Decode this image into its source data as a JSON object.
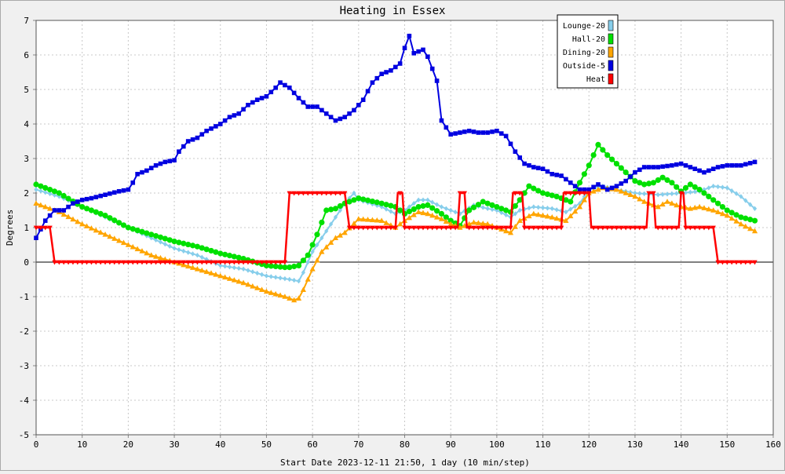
{
  "chart_data": {
    "type": "line",
    "title": "Heating in Essex",
    "xlabel": "Start Date 2023-12-11 21:50, 1 day (10 min/step)",
    "ylabel": "Degrees",
    "xlim": [
      0,
      160
    ],
    "ylim": [
      -5,
      7
    ],
    "x_ticks": [
      0,
      10,
      20,
      30,
      40,
      50,
      60,
      70,
      80,
      90,
      100,
      110,
      120,
      130,
      140,
      150,
      160
    ],
    "y_ticks": [
      -5,
      -4,
      -3,
      -2,
      -1,
      0,
      1,
      2,
      3,
      4,
      5,
      6,
      7
    ],
    "grid": true,
    "legend": "top-right",
    "series": [
      {
        "name": "Lounge-20",
        "color": "#87ceeb",
        "marker": "diamond",
        "points": [
          [
            0,
            2.1
          ],
          [
            5,
            1.9
          ],
          [
            10,
            1.6
          ],
          [
            15,
            1.3
          ],
          [
            20,
            1.0
          ],
          [
            25,
            0.7
          ],
          [
            30,
            0.4
          ],
          [
            35,
            0.2
          ],
          [
            40,
            -0.1
          ],
          [
            45,
            -0.2
          ],
          [
            50,
            -0.4
          ],
          [
            55,
            -0.5
          ],
          [
            57,
            -0.55
          ],
          [
            58,
            -0.3
          ],
          [
            60,
            0.3
          ],
          [
            63,
            0.9
          ],
          [
            65,
            1.3
          ],
          [
            67,
            1.7
          ],
          [
            69,
            2.0
          ],
          [
            70,
            1.8
          ],
          [
            75,
            1.6
          ],
          [
            78,
            1.4
          ],
          [
            80,
            1.5
          ],
          [
            83,
            1.8
          ],
          [
            85,
            1.8
          ],
          [
            88,
            1.6
          ],
          [
            90,
            1.5
          ],
          [
            92,
            1.4
          ],
          [
            95,
            1.65
          ],
          [
            98,
            1.55
          ],
          [
            100,
            1.5
          ],
          [
            103,
            1.3
          ],
          [
            105,
            1.5
          ],
          [
            108,
            1.6
          ],
          [
            112,
            1.55
          ],
          [
            115,
            1.45
          ],
          [
            118,
            1.7
          ],
          [
            120,
            2.1
          ],
          [
            123,
            2.2
          ],
          [
            126,
            2.1
          ],
          [
            130,
            2.0
          ],
          [
            135,
            1.95
          ],
          [
            140,
            2.0
          ],
          [
            144,
            2.05
          ],
          [
            147,
            2.2
          ],
          [
            150,
            2.15
          ],
          [
            153,
            1.9
          ],
          [
            156,
            1.55
          ]
        ]
      },
      {
        "name": "Hall-20",
        "color": "#00e000",
        "marker": "circle",
        "points": [
          [
            0,
            2.25
          ],
          [
            5,
            2.0
          ],
          [
            10,
            1.6
          ],
          [
            15,
            1.35
          ],
          [
            20,
            1.0
          ],
          [
            25,
            0.8
          ],
          [
            30,
            0.6
          ],
          [
            35,
            0.45
          ],
          [
            40,
            0.25
          ],
          [
            45,
            0.1
          ],
          [
            50,
            -0.1
          ],
          [
            54,
            -0.15
          ],
          [
            55,
            -0.15
          ],
          [
            57,
            -0.1
          ],
          [
            59,
            0.2
          ],
          [
            61,
            0.8
          ],
          [
            63,
            1.5
          ],
          [
            65,
            1.55
          ],
          [
            67,
            1.7
          ],
          [
            70,
            1.85
          ],
          [
            75,
            1.7
          ],
          [
            78,
            1.6
          ],
          [
            80,
            1.4
          ],
          [
            83,
            1.6
          ],
          [
            85,
            1.65
          ],
          [
            88,
            1.4
          ],
          [
            90,
            1.2
          ],
          [
            92,
            1.05
          ],
          [
            94,
            1.5
          ],
          [
            97,
            1.75
          ],
          [
            100,
            1.6
          ],
          [
            103,
            1.45
          ],
          [
            105,
            1.8
          ],
          [
            107,
            2.2
          ],
          [
            110,
            2.0
          ],
          [
            113,
            1.9
          ],
          [
            116,
            1.75
          ],
          [
            118,
            2.3
          ],
          [
            120,
            2.8
          ],
          [
            122,
            3.4
          ],
          [
            124,
            3.1
          ],
          [
            126,
            2.85
          ],
          [
            128,
            2.6
          ],
          [
            130,
            2.35
          ],
          [
            132,
            2.25
          ],
          [
            134,
            2.3
          ],
          [
            136,
            2.45
          ],
          [
            138,
            2.3
          ],
          [
            140,
            2.05
          ],
          [
            142,
            2.25
          ],
          [
            144,
            2.1
          ],
          [
            147,
            1.8
          ],
          [
            150,
            1.5
          ],
          [
            153,
            1.3
          ],
          [
            156,
            1.2
          ]
        ]
      },
      {
        "name": "Dining-20",
        "color": "#ffa500",
        "marker": "triangle",
        "points": [
          [
            0,
            1.7
          ],
          [
            5,
            1.45
          ],
          [
            10,
            1.1
          ],
          [
            15,
            0.8
          ],
          [
            20,
            0.5
          ],
          [
            25,
            0.2
          ],
          [
            30,
            0.0
          ],
          [
            35,
            -0.2
          ],
          [
            40,
            -0.4
          ],
          [
            45,
            -0.6
          ],
          [
            50,
            -0.85
          ],
          [
            54,
            -1.0
          ],
          [
            56,
            -1.1
          ],
          [
            57,
            -1.05
          ],
          [
            58,
            -0.8
          ],
          [
            60,
            -0.2
          ],
          [
            62,
            0.3
          ],
          [
            65,
            0.7
          ],
          [
            67,
            0.85
          ],
          [
            70,
            1.25
          ],
          [
            75,
            1.2
          ],
          [
            78,
            1.0
          ],
          [
            80,
            1.2
          ],
          [
            83,
            1.45
          ],
          [
            85,
            1.4
          ],
          [
            88,
            1.25
          ],
          [
            90,
            1.1
          ],
          [
            92,
            1.0
          ],
          [
            95,
            1.15
          ],
          [
            98,
            1.1
          ],
          [
            100,
            1.0
          ],
          [
            103,
            0.85
          ],
          [
            105,
            1.2
          ],
          [
            108,
            1.4
          ],
          [
            112,
            1.3
          ],
          [
            115,
            1.2
          ],
          [
            118,
            1.6
          ],
          [
            120,
            2.0
          ],
          [
            123,
            2.15
          ],
          [
            126,
            2.1
          ],
          [
            128,
            2.0
          ],
          [
            130,
            1.9
          ],
          [
            132,
            1.75
          ],
          [
            135,
            1.6
          ],
          [
            137,
            1.75
          ],
          [
            140,
            1.6
          ],
          [
            142,
            1.55
          ],
          [
            144,
            1.6
          ],
          [
            147,
            1.5
          ],
          [
            150,
            1.35
          ],
          [
            153,
            1.1
          ],
          [
            156,
            0.9
          ]
        ]
      },
      {
        "name": "Outside-5",
        "color": "#0000e0",
        "marker": "square",
        "points": [
          [
            0,
            0.7
          ],
          [
            2,
            1.2
          ],
          [
            4,
            1.5
          ],
          [
            6,
            1.5
          ],
          [
            8,
            1.7
          ],
          [
            10,
            1.8
          ],
          [
            12,
            1.85
          ],
          [
            15,
            1.95
          ],
          [
            18,
            2.05
          ],
          [
            20,
            2.1
          ],
          [
            21,
            2.3
          ],
          [
            22,
            2.55
          ],
          [
            24,
            2.65
          ],
          [
            26,
            2.8
          ],
          [
            28,
            2.9
          ],
          [
            30,
            2.95
          ],
          [
            31,
            3.2
          ],
          [
            33,
            3.5
          ],
          [
            35,
            3.6
          ],
          [
            37,
            3.8
          ],
          [
            40,
            4.0
          ],
          [
            42,
            4.2
          ],
          [
            44,
            4.3
          ],
          [
            46,
            4.55
          ],
          [
            48,
            4.7
          ],
          [
            50,
            4.8
          ],
          [
            52,
            5.05
          ],
          [
            53,
            5.2
          ],
          [
            55,
            5.05
          ],
          [
            57,
            4.75
          ],
          [
            59,
            4.5
          ],
          [
            61,
            4.5
          ],
          [
            63,
            4.3
          ],
          [
            65,
            4.1
          ],
          [
            67,
            4.2
          ],
          [
            69,
            4.4
          ],
          [
            71,
            4.7
          ],
          [
            73,
            5.2
          ],
          [
            75,
            5.45
          ],
          [
            77,
            5.55
          ],
          [
            79,
            5.75
          ],
          [
            80,
            6.2
          ],
          [
            81,
            6.55
          ],
          [
            82,
            6.05
          ],
          [
            84,
            6.15
          ],
          [
            85,
            5.95
          ],
          [
            87,
            5.25
          ],
          [
            88,
            4.1
          ],
          [
            90,
            3.7
          ],
          [
            92,
            3.75
          ],
          [
            94,
            3.8
          ],
          [
            96,
            3.75
          ],
          [
            98,
            3.75
          ],
          [
            100,
            3.8
          ],
          [
            102,
            3.65
          ],
          [
            104,
            3.2
          ],
          [
            106,
            2.85
          ],
          [
            108,
            2.75
          ],
          [
            110,
            2.7
          ],
          [
            112,
            2.55
          ],
          [
            114,
            2.5
          ],
          [
            116,
            2.3
          ],
          [
            118,
            2.1
          ],
          [
            120,
            2.1
          ],
          [
            122,
            2.25
          ],
          [
            124,
            2.1
          ],
          [
            126,
            2.2
          ],
          [
            128,
            2.35
          ],
          [
            130,
            2.6
          ],
          [
            132,
            2.75
          ],
          [
            135,
            2.75
          ],
          [
            138,
            2.8
          ],
          [
            140,
            2.85
          ],
          [
            142,
            2.75
          ],
          [
            145,
            2.6
          ],
          [
            148,
            2.75
          ],
          [
            150,
            2.8
          ],
          [
            153,
            2.8
          ],
          [
            156,
            2.9
          ]
        ]
      },
      {
        "name": "Heat",
        "color": "#ff0000",
        "marker": "triangle-down",
        "points": [
          [
            0,
            1
          ],
          [
            3,
            1
          ],
          [
            4,
            0
          ],
          [
            54,
            0
          ],
          [
            55,
            2
          ],
          [
            67,
            2
          ],
          [
            68,
            1
          ],
          [
            78,
            1
          ],
          [
            78.5,
            2
          ],
          [
            79.5,
            2
          ],
          [
            80,
            1
          ],
          [
            91.5,
            1
          ],
          [
            92,
            2
          ],
          [
            93,
            2
          ],
          [
            93.5,
            1
          ],
          [
            103,
            1
          ],
          [
            103.5,
            2
          ],
          [
            105.5,
            2
          ],
          [
            106,
            1
          ],
          [
            114,
            1
          ],
          [
            114.5,
            2
          ],
          [
            120,
            2
          ],
          [
            120.5,
            1
          ],
          [
            132.5,
            1
          ],
          [
            133,
            2
          ],
          [
            134,
            2
          ],
          [
            134.5,
            1
          ],
          [
            139.5,
            1
          ],
          [
            140,
            2
          ],
          [
            140.5,
            2
          ],
          [
            141,
            1
          ],
          [
            147,
            1
          ],
          [
            148,
            0
          ],
          [
            156,
            0
          ]
        ]
      }
    ]
  }
}
